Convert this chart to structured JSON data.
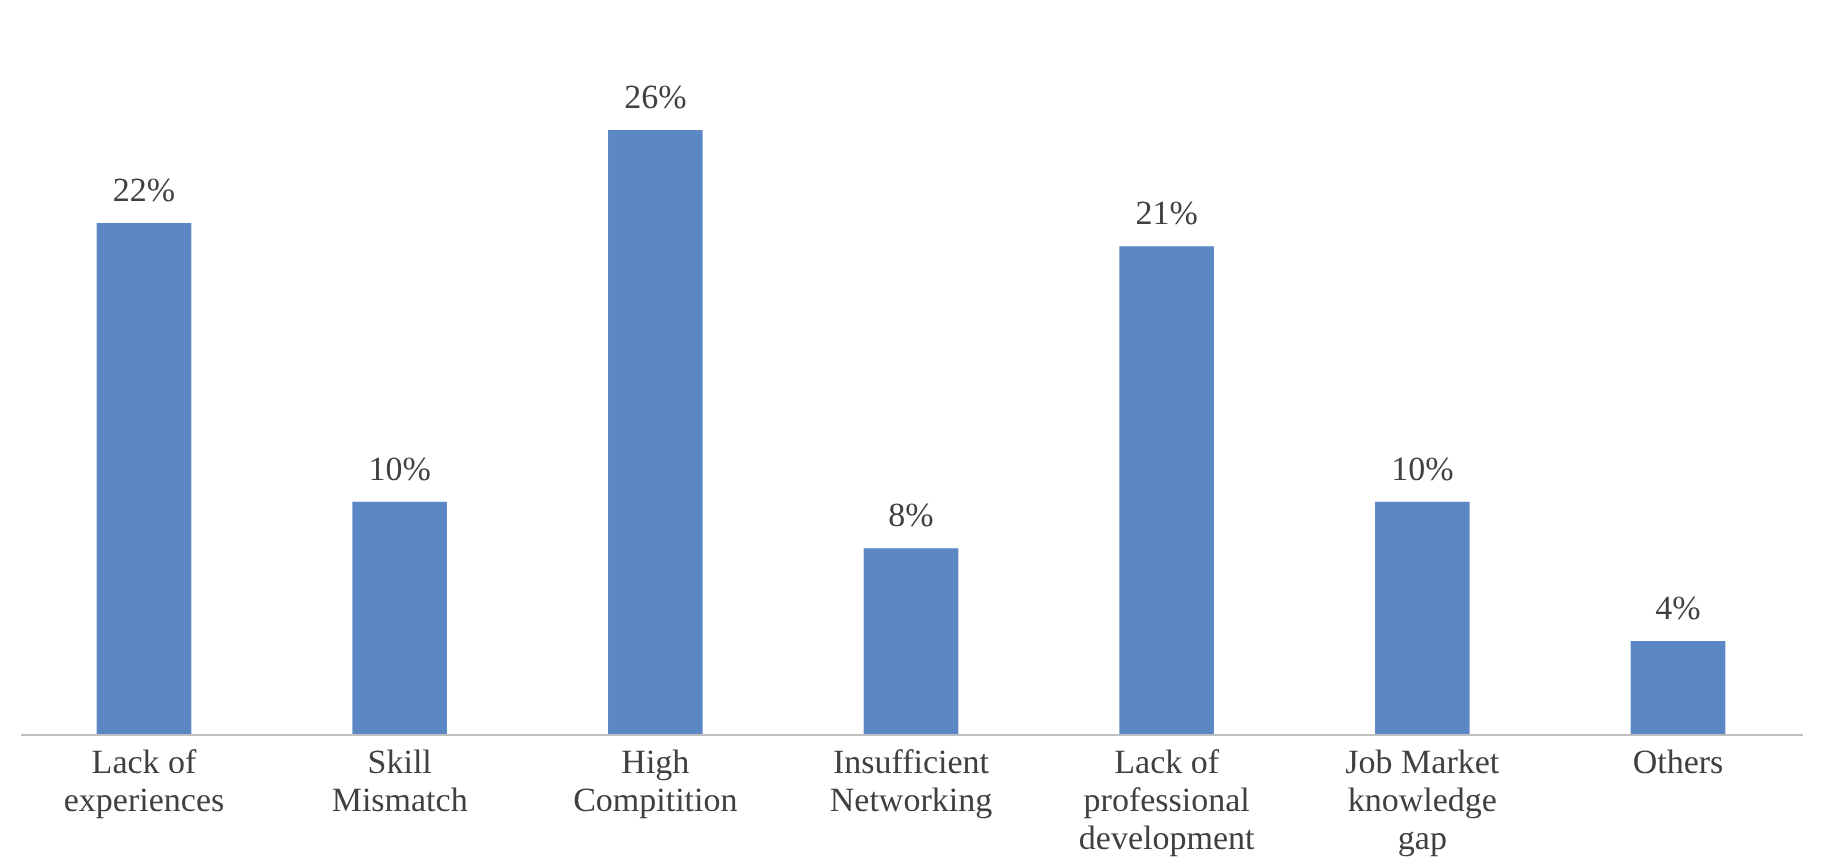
{
  "chart_data": {
    "type": "bar",
    "categories": [
      "Lack of experiences",
      "Skill Mismatch",
      "High Compitition",
      "Insufficient Networking",
      "Lack of professional development",
      "Job Market knowledge gap",
      "Others"
    ],
    "values": [
      22,
      10,
      26,
      8,
      21,
      10,
      4
    ],
    "value_labels": [
      "22%",
      "10%",
      "26%",
      "8%",
      "21%",
      "10%",
      "4%"
    ],
    "color": "#5b87c5",
    "grid": false
  }
}
